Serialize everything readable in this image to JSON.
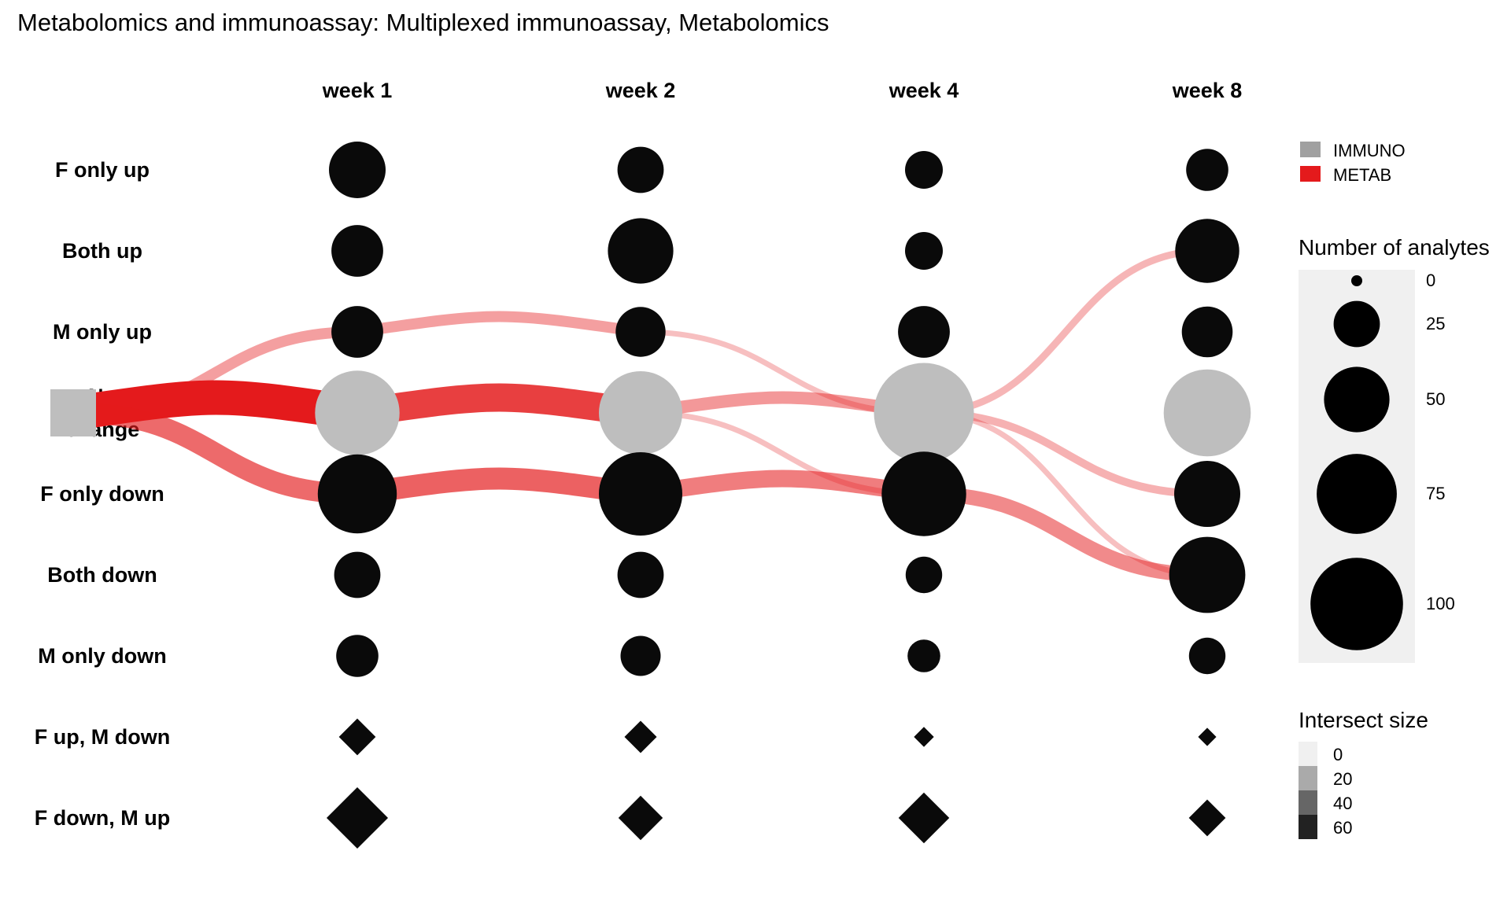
{
  "chart_data": {
    "type": "alluvial-dot",
    "title": "Metabolomics and immunoassay: Multiplexed immunoassay, Metabolomics",
    "columns": [
      "week 1",
      "week 2",
      "week 4",
      "week 8"
    ],
    "start_node": "No change",
    "rows": [
      "F only up",
      "Both up",
      "M only up",
      "No change",
      "F only down",
      "Both down",
      "M only down",
      "F up, M down",
      "F down, M up"
    ],
    "row_node_shape": {
      "F only up": "circle",
      "Both up": "circle",
      "M only up": "circle",
      "No change": "circle",
      "F only down": "circle",
      "Both down": "circle",
      "M only down": "circle",
      "F up, M down": "diamond",
      "F down, M up": "diamond"
    },
    "row_node_color": {
      "No change": "#bebebe",
      "default": "#0a0a0a"
    },
    "number_of_analytes": {
      "week 1": [
        36,
        30,
        30,
        80,
        70,
        24,
        20,
        2,
        6
      ],
      "week 2": [
        24,
        48,
        28,
        78,
        78,
        24,
        18,
        1.5,
        3
      ],
      "week 4": [
        16,
        16,
        30,
        112,
        80,
        15,
        12,
        0.5,
        4
      ],
      "week 8": [
        20,
        46,
        29,
        85,
        49,
        65,
        15,
        0.4,
        2
      ]
    },
    "flows": [
      {
        "from_col": "start",
        "from": "No change",
        "to_col": "week 1",
        "to": "M only up",
        "series": "METAB",
        "size": 10
      },
      {
        "from_col": "start",
        "from": "No change",
        "to_col": "week 1",
        "to": "No change",
        "series": "METAB",
        "size": 40
      },
      {
        "from_col": "start",
        "from": "No change",
        "to_col": "week 1",
        "to": "F only down",
        "series": "METAB",
        "size": 22
      },
      {
        "from_col": "week 1",
        "from": "M only up",
        "to_col": "week 2",
        "to": "M only up",
        "series": "METAB",
        "size": 10
      },
      {
        "from_col": "week 1",
        "from": "No change",
        "to_col": "week 2",
        "to": "No change",
        "series": "METAB",
        "size": 32
      },
      {
        "from_col": "week 1",
        "from": "F only down",
        "to_col": "week 2",
        "to": "F only down",
        "series": "METAB",
        "size": 24
      },
      {
        "from_col": "week 2",
        "from": "M only up",
        "to_col": "week 4",
        "to": "No change",
        "series": "METAB",
        "size": 3
      },
      {
        "from_col": "week 2",
        "from": "No change",
        "to_col": "week 4",
        "to": "No change",
        "series": "METAB",
        "size": 12
      },
      {
        "from_col": "week 2",
        "from": "No change",
        "to_col": "week 4",
        "to": "F only down",
        "series": "METAB",
        "size": 3
      },
      {
        "from_col": "week 2",
        "from": "F only down",
        "to_col": "week 4",
        "to": "F only down",
        "series": "METAB",
        "size": 18
      },
      {
        "from_col": "week 4",
        "from": "No change",
        "to_col": "week 8",
        "to": "Both up",
        "series": "METAB",
        "size": 5
      },
      {
        "from_col": "week 4",
        "from": "No change",
        "to_col": "week 8",
        "to": "F only down",
        "series": "METAB",
        "size": 6
      },
      {
        "from_col": "week 4",
        "from": "No change",
        "to_col": "week 8",
        "to": "Both down",
        "series": "METAB",
        "size": 3
      },
      {
        "from_col": "week 4",
        "from": "F only down",
        "to_col": "week 8",
        "to": "Both down",
        "series": "METAB",
        "size": 15
      }
    ],
    "legend_series": {
      "entries": [
        {
          "label": "IMMUNO",
          "color": "#a0a0a0"
        },
        {
          "label": "METAB",
          "color": "#e41a1c"
        }
      ]
    },
    "legend_size": {
      "title": "Number of analytes",
      "values": [
        0,
        25,
        50,
        75,
        100
      ],
      "labels": [
        "0",
        "25",
        "50",
        "75",
        "100"
      ]
    },
    "legend_intersect": {
      "title": "Intersect size",
      "values": [
        0,
        20,
        40,
        60
      ],
      "labels": [
        "0",
        "20",
        "40",
        "60"
      ],
      "colors": [
        "#f0f0f0",
        "#aaaaaa",
        "#666666",
        "#222222"
      ]
    },
    "colors": {
      "metab": "#e41a1c",
      "immuno": "#a0a0a0",
      "node": "#0a0a0a",
      "no_change": "#bebebe",
      "legend_panel": "#f0f0f0"
    }
  }
}
